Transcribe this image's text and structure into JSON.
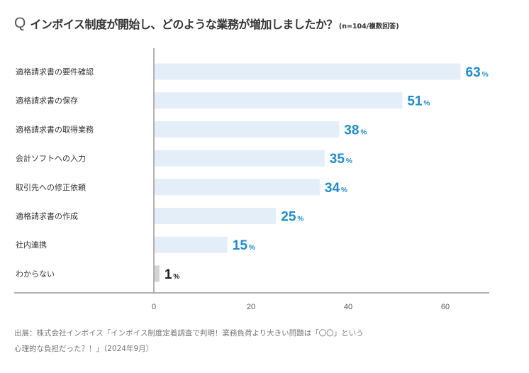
{
  "question": {
    "mark": "Q",
    "text": "インボイス制度が開始し、どのような業務が増加しましたか？",
    "note": "(n=104/複数回答)"
  },
  "chart_data": {
    "type": "bar",
    "orientation": "horizontal",
    "categories": [
      "適格請求書の要件確認",
      "適格請求書の保存",
      "適格請求書の取得業務",
      "会計ソフトへの入力",
      "取引先への修正依頼",
      "適格請求書の作成",
      "社内連携",
      "わからない"
    ],
    "values": [
      63,
      51,
      38,
      35,
      34,
      25,
      15,
      1
    ],
    "unit": "%",
    "xlim": [
      0,
      69
    ],
    "xticks": [
      0,
      20,
      40,
      60
    ],
    "grid": false,
    "legend": "none"
  },
  "colors": {
    "bar": "#e3eef8",
    "bar_minor": "#d3d3d3",
    "value_text": "#1e8ccf",
    "value_text_minor": "#222222",
    "axis": "#999999"
  },
  "source": {
    "line1": "出展：株式会社インボイス「インボイス制度定着調査で判明！業務負荷より大きい問題は「〇〇」という",
    "line2": "心理的な負担だった？！」（2024年9月）"
  }
}
